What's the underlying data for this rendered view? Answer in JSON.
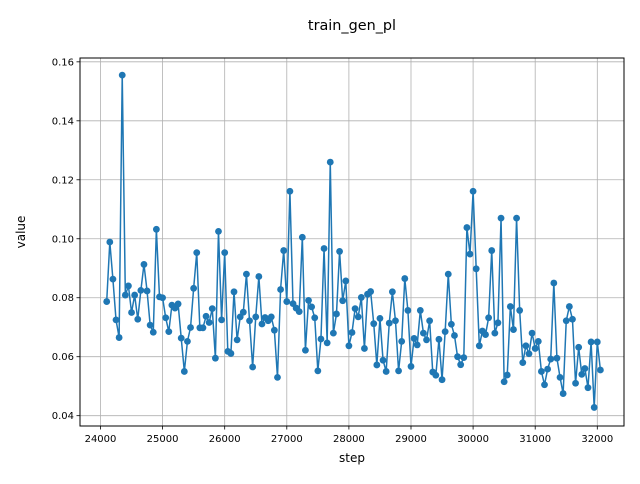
{
  "chart_data": {
    "type": "line",
    "title": "train_gen_pl",
    "xlabel": "step",
    "ylabel": "value",
    "xlim": [
      23670,
      32430
    ],
    "ylim": [
      0.0365,
      0.1613
    ],
    "x_ticks": [
      24000,
      25000,
      26000,
      27000,
      28000,
      29000,
      30000,
      31000,
      32000
    ],
    "x_tick_labels": [
      "24000",
      "25000",
      "26000",
      "27000",
      "28000",
      "29000",
      "30000",
      "31000",
      "32000"
    ],
    "y_ticks": [
      0.04,
      0.06,
      0.08,
      0.1,
      0.12,
      0.14,
      0.16
    ],
    "y_tick_labels": [
      "0.04",
      "0.06",
      "0.08",
      "0.10",
      "0.12",
      "0.14",
      "0.16"
    ],
    "grid": true,
    "line_color": "#1f77b4",
    "marker": "circle",
    "series": [
      {
        "x": [
          24100,
          24150,
          24200,
          24250,
          24300,
          24350,
          24400,
          24450,
          24500,
          24550,
          24600,
          24650,
          24700,
          24750,
          24800,
          24850,
          24900,
          24950,
          25000,
          25050,
          25100,
          25150,
          25200,
          25250,
          25300,
          25350,
          25400,
          25450,
          25500,
          25550,
          25600,
          25650,
          25700,
          25750,
          25800,
          25850,
          25900,
          25950,
          26000,
          26050,
          26100,
          26150,
          26200,
          26250,
          26300,
          26350,
          26400,
          26450,
          26500,
          26550,
          26600,
          26650,
          26700,
          26750,
          26800,
          26850,
          26900,
          26950,
          27000,
          27050,
          27100,
          27150,
          27200,
          27250,
          27300,
          27350,
          27400,
          27450,
          27500,
          27550,
          27600,
          27650,
          27700,
          27750,
          27800,
          27850,
          27900,
          27950,
          28000,
          28050,
          28100,
          28150,
          28200,
          28250,
          28300,
          28350,
          28400,
          28450,
          28500,
          28550,
          28600,
          28650,
          28700,
          28750,
          28800,
          28850,
          28900,
          28950,
          29000,
          29050,
          29100,
          29150,
          29200,
          29250,
          29300,
          29350,
          29400,
          29450,
          29500,
          29550,
          29600,
          29650,
          29700,
          29750,
          29800,
          29850,
          29900,
          29950,
          30000,
          30050,
          30100,
          30150,
          30200,
          30250,
          30300,
          30350,
          30400,
          30450,
          30500,
          30550,
          30600,
          30650,
          30700,
          30750,
          30800,
          30850,
          30900,
          30950,
          31000,
          31050,
          31100,
          31150,
          31200,
          31250,
          31300,
          31350,
          31400,
          31450,
          31500,
          31550,
          31600,
          31650,
          31700,
          31750,
          31800,
          31850,
          31900,
          31950,
          32000,
          32050
        ],
        "y": [
          0.0787,
          0.0989,
          0.0863,
          0.0725,
          0.0665,
          0.1555,
          0.0809,
          0.084,
          0.075,
          0.0809,
          0.0727,
          0.0825,
          0.0913,
          0.0823,
          0.0707,
          0.0683,
          0.1032,
          0.0803,
          0.08,
          0.0732,
          0.0685,
          0.0775,
          0.0765,
          0.0779,
          0.0663,
          0.055,
          0.0652,
          0.0699,
          0.0832,
          0.0953,
          0.0698,
          0.0698,
          0.0737,
          0.0716,
          0.0763,
          0.0595,
          0.1025,
          0.0725,
          0.0953,
          0.0618,
          0.0611,
          0.082,
          0.0657,
          0.0735,
          0.0751,
          0.088,
          0.0722,
          0.0565,
          0.0735,
          0.0872,
          0.0711,
          0.0733,
          0.0722,
          0.0735,
          0.069,
          0.053,
          0.0828,
          0.096,
          0.0787,
          0.1161,
          0.078,
          0.0765,
          0.0753,
          0.1005,
          0.0622,
          0.0791,
          0.0769,
          0.0732,
          0.0552,
          0.066,
          0.0967,
          0.0647,
          0.126,
          0.068,
          0.0745,
          0.0957,
          0.079,
          0.0857,
          0.0637,
          0.0682,
          0.0763,
          0.0735,
          0.0801,
          0.0628,
          0.0812,
          0.0821,
          0.0712,
          0.0572,
          0.073,
          0.0588,
          0.055,
          0.0714,
          0.082,
          0.0722,
          0.0552,
          0.0652,
          0.0865,
          0.0757,
          0.0567,
          0.0662,
          0.064,
          0.0757,
          0.068,
          0.0657,
          0.0722,
          0.0548,
          0.0537,
          0.0659,
          0.0522,
          0.0685,
          0.088,
          0.071,
          0.0672,
          0.06,
          0.0573,
          0.0597,
          0.1038,
          0.0948,
          0.1161,
          0.0898,
          0.0637,
          0.0687,
          0.0675,
          0.0732,
          0.096,
          0.068,
          0.0715,
          0.107,
          0.0515,
          0.0538,
          0.077,
          0.0692,
          0.107,
          0.0757,
          0.058,
          0.0637,
          0.061,
          0.068,
          0.0628,
          0.0652,
          0.055,
          0.0505,
          0.0558,
          0.0592,
          0.085,
          0.0595,
          0.053,
          0.0475,
          0.0722,
          0.077,
          0.0727,
          0.051,
          0.0632,
          0.054,
          0.056,
          0.0495,
          0.065,
          0.0428,
          0.065,
          0.0555
        ]
      }
    ]
  }
}
